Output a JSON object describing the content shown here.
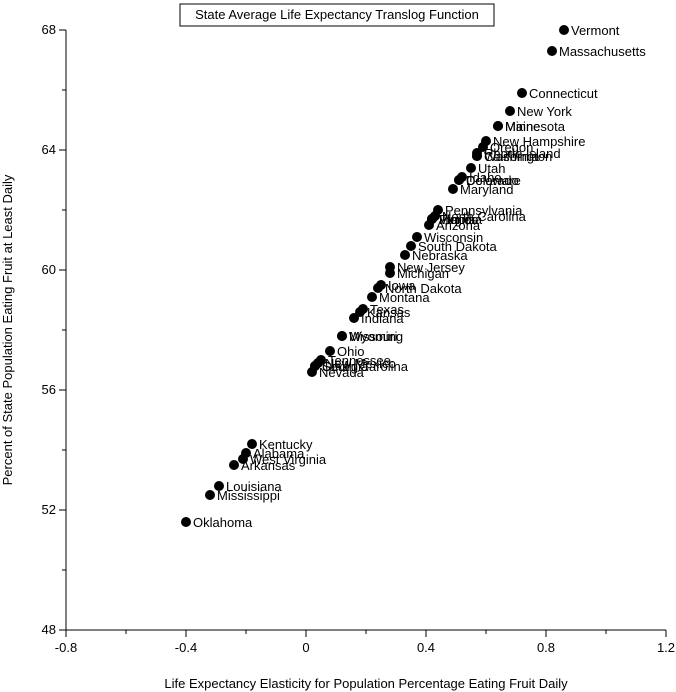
{
  "chart_data": {
    "type": "scatter",
    "title": "State Average Life Expectancy Translog Function",
    "xlabel": "Life Expectancy Elasticity for Population Percentage Eating Fruit Daily",
    "ylabel": "Percent of State Population Eating Fruit at Least Daily",
    "xlim": [
      -0.8,
      1.2
    ],
    "ylim": [
      48,
      68
    ],
    "xticks": [
      "-0.8",
      "-0.4",
      "0",
      "0.4",
      "0.8",
      "1.2"
    ],
    "yticks": [
      "48",
      "52",
      "56",
      "60",
      "64",
      "68"
    ],
    "grid": false,
    "legend": "none",
    "marker_color": "#000000",
    "points": [
      {
        "label": "Vermont",
        "x": 0.86,
        "y": 68.0
      },
      {
        "label": "Massachusetts",
        "x": 0.82,
        "y": 67.3
      },
      {
        "label": "Connecticut",
        "x": 0.72,
        "y": 65.9
      },
      {
        "label": "New York",
        "x": 0.68,
        "y": 65.3
      },
      {
        "label": "Minnesota",
        "x": 0.64,
        "y": 64.8
      },
      {
        "label": "Maine",
        "x": 0.64,
        "y": 64.8
      },
      {
        "label": "New Hampshire",
        "x": 0.6,
        "y": 64.3
      },
      {
        "label": "Oregon",
        "x": 0.59,
        "y": 64.1
      },
      {
        "label": "Rhode Island",
        "x": 0.57,
        "y": 63.9
      },
      {
        "label": "Washington",
        "x": 0.57,
        "y": 63.8
      },
      {
        "label": "California",
        "x": 0.57,
        "y": 63.8
      },
      {
        "label": "Utah",
        "x": 0.55,
        "y": 63.4
      },
      {
        "label": "Idaho",
        "x": 0.52,
        "y": 63.1
      },
      {
        "label": "Colorado",
        "x": 0.51,
        "y": 63.0
      },
      {
        "label": "Delaware",
        "x": 0.51,
        "y": 63.0
      },
      {
        "label": "Maryland",
        "x": 0.49,
        "y": 62.7
      },
      {
        "label": "Pennsylvania",
        "x": 0.44,
        "y": 62.0
      },
      {
        "label": "North Carolina",
        "x": 0.43,
        "y": 61.8
      },
      {
        "label": "Illinois",
        "x": 0.42,
        "y": 61.7
      },
      {
        "label": "Florida",
        "x": 0.42,
        "y": 61.7
      },
      {
        "label": "Virginia",
        "x": 0.42,
        "y": 61.7
      },
      {
        "label": "Arizona",
        "x": 0.41,
        "y": 61.5
      },
      {
        "label": "Wisconsin",
        "x": 0.37,
        "y": 61.1
      },
      {
        "label": "South Dakota",
        "x": 0.35,
        "y": 60.8
      },
      {
        "label": "Nebraska",
        "x": 0.33,
        "y": 60.5
      },
      {
        "label": "New Jersey",
        "x": 0.28,
        "y": 60.1
      },
      {
        "label": "Michigan",
        "x": 0.28,
        "y": 59.9
      },
      {
        "label": "Iowa",
        "x": 0.25,
        "y": 59.5
      },
      {
        "label": "North Dakota",
        "x": 0.24,
        "y": 59.4
      },
      {
        "label": "Montana",
        "x": 0.22,
        "y": 59.1
      },
      {
        "label": "Texas",
        "x": 0.19,
        "y": 58.7
      },
      {
        "label": "Kansas",
        "x": 0.18,
        "y": 58.6
      },
      {
        "label": "Indiana",
        "x": 0.16,
        "y": 58.4
      },
      {
        "label": "Missouri",
        "x": 0.12,
        "y": 57.8
      },
      {
        "label": "Wyoming",
        "x": 0.12,
        "y": 57.8
      },
      {
        "label": "Ohio",
        "x": 0.08,
        "y": 57.3
      },
      {
        "label": "Tennessee",
        "x": 0.05,
        "y": 57.0
      },
      {
        "label": "New Mexico",
        "x": 0.04,
        "y": 56.9
      },
      {
        "label": "Georgia",
        "x": 0.03,
        "y": 56.8
      },
      {
        "label": "South Carolina",
        "x": 0.03,
        "y": 56.8
      },
      {
        "label": "Nevada",
        "x": 0.02,
        "y": 56.6
      },
      {
        "label": "Kentucky",
        "x": -0.18,
        "y": 54.2
      },
      {
        "label": "Alabama",
        "x": -0.2,
        "y": 53.9
      },
      {
        "label": "West Virginia",
        "x": -0.21,
        "y": 53.7
      },
      {
        "label": "Arkansas",
        "x": -0.24,
        "y": 53.5
      },
      {
        "label": "Louisiana",
        "x": -0.29,
        "y": 52.8
      },
      {
        "label": "Mississippi",
        "x": -0.32,
        "y": 52.5
      },
      {
        "label": "Oklahoma",
        "x": -0.4,
        "y": 51.6
      }
    ]
  }
}
